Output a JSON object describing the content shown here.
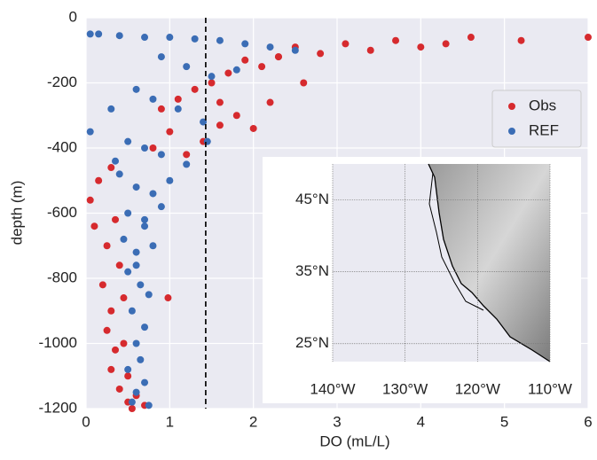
{
  "chart_data": {
    "type": "scatter",
    "x_label": "DO (mL/L)",
    "y_label": "depth (m)",
    "xlim": [
      0,
      6
    ],
    "ylim": [
      -1200,
      0
    ],
    "xticks": [
      0,
      1,
      2,
      3,
      4,
      5,
      6
    ],
    "yticks": [
      0,
      -200,
      -400,
      -600,
      -800,
      -1000,
      -1200
    ],
    "grid": true,
    "legend": "upper right",
    "vline": 1.43,
    "series": [
      {
        "name": "Obs",
        "color": "#d62a2e",
        "x": [
          6.0,
          5.2,
          4.6,
          4.3,
          4.0,
          3.7,
          3.4,
          3.1,
          2.8,
          2.5,
          2.3,
          2.1,
          1.9,
          1.7,
          1.5,
          1.3,
          1.1,
          0.9,
          2.6,
          2.2,
          1.8,
          1.6,
          1.4,
          2.0,
          1.2,
          1.0,
          0.8,
          0.15,
          0.3,
          0.05,
          0.1,
          0.25,
          0.35,
          0.4,
          0.2,
          0.3,
          0.45,
          0.25,
          0.35,
          0.3,
          0.4,
          0.5,
          0.45,
          0.6,
          0.55,
          0.7,
          0.98,
          1.6,
          2.3,
          0.5
        ],
        "values": [
          -60,
          -70,
          -60,
          -80,
          -90,
          -70,
          -100,
          -80,
          -110,
          -90,
          -120,
          -150,
          -130,
          -170,
          -200,
          -220,
          -250,
          -280,
          -200,
          -260,
          -300,
          -330,
          -380,
          -340,
          -420,
          -350,
          -400,
          -500,
          -460,
          -560,
          -640,
          -700,
          -620,
          -760,
          -820,
          -900,
          -860,
          -960,
          -1020,
          -1080,
          -1140,
          -1180,
          -1000,
          -1160,
          -1200,
          -1190,
          -860,
          -260,
          -120,
          -1100
        ]
      },
      {
        "name": "REF",
        "color": "#3b6db5",
        "x": [
          0.05,
          0.15,
          0.4,
          0.7,
          1.0,
          1.3,
          1.6,
          1.9,
          2.2,
          2.5,
          0.9,
          1.2,
          1.5,
          1.8,
          0.6,
          0.8,
          1.1,
          1.4,
          0.3,
          0.05,
          0.5,
          0.7,
          0.9,
          1.2,
          0.4,
          0.6,
          0.8,
          1.0,
          0.5,
          0.7,
          0.9,
          0.45,
          0.6,
          0.8,
          0.5,
          0.65,
          0.75,
          0.55,
          0.7,
          0.6,
          0.65,
          0.5,
          0.7,
          0.6,
          0.55,
          0.75,
          0.6,
          0.7,
          1.45,
          0.35
        ],
        "values": [
          -50,
          -50,
          -55,
          -60,
          -60,
          -65,
          -70,
          -80,
          -90,
          -100,
          -120,
          -150,
          -180,
          -160,
          -220,
          -250,
          -280,
          -320,
          -280,
          -350,
          -380,
          -400,
          -420,
          -450,
          -480,
          -520,
          -540,
          -500,
          -600,
          -620,
          -580,
          -680,
          -720,
          -700,
          -780,
          -820,
          -850,
          -900,
          -950,
          -1000,
          -1050,
          -1080,
          -1120,
          -1150,
          -1180,
          -1190,
          -760,
          -640,
          -380,
          -440
        ]
      }
    ],
    "inset": {
      "xlim": [
        -140,
        -110
      ],
      "ylim": [
        22.5,
        50
      ],
      "xticks": [
        {
          "value": -140,
          "label": "140°W"
        },
        {
          "value": -130,
          "label": "130°W"
        },
        {
          "value": -120,
          "label": "120°W"
        },
        {
          "value": -110,
          "label": "110°W"
        }
      ],
      "yticks": [
        {
          "value": 45,
          "label": "45°N"
        },
        {
          "value": 35,
          "label": "35°N"
        },
        {
          "value": 25,
          "label": "25°N"
        }
      ]
    }
  }
}
